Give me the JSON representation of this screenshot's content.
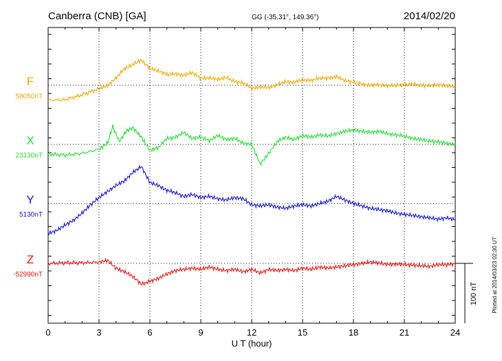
{
  "header": {
    "station": "Canberra (CNB)  [GA]",
    "coords": "GG (-35.31°, 149.36°)",
    "date": "2014/02/20"
  },
  "side_note": "Plotted at 2014/03/23 02:30 UT",
  "scale_bar_label": "100 nT",
  "chart_data": {
    "type": "line",
    "title": "Canberra (CNB)  [GA]",
    "xlabel": "U T (hour)",
    "xlim": [
      0,
      24
    ],
    "x_ticks": [
      "0",
      "3",
      "6",
      "9",
      "12",
      "15",
      "18",
      "21",
      "24"
    ],
    "grid": true,
    "units": "nT",
    "scale_nT": 100,
    "series": [
      {
        "name": "F",
        "baseline_label": "58050nT",
        "baseline_nT": 58050,
        "color": "#f0a800",
        "x": [
          0,
          1,
          2,
          3,
          3.5,
          4,
          4.5,
          5,
          5.5,
          6,
          6.5,
          7,
          7.5,
          8,
          8.5,
          9,
          9.5,
          10,
          10.5,
          11,
          11.5,
          12,
          12.5,
          13,
          13.5,
          14,
          14.5,
          15,
          15.5,
          16,
          16.5,
          17,
          17.5,
          18,
          18.5,
          19,
          19.5,
          20,
          20.5,
          21,
          21.5,
          22,
          22.5,
          23,
          23.5,
          24
        ],
        "values": [
          -25,
          -24,
          -16,
          -6,
          0,
          12,
          28,
          35,
          42,
          28,
          24,
          18,
          19,
          17,
          21,
          12,
          12,
          10,
          13,
          6,
          4,
          -5,
          -3,
          -4,
          1,
          6,
          5,
          9,
          8,
          12,
          12,
          14,
          8,
          5,
          2,
          0,
          1,
          -1,
          0,
          1,
          2,
          0,
          -1,
          1,
          -1,
          -2
        ]
      },
      {
        "name": "X",
        "baseline_label": "23130nT",
        "baseline_nT": 23130,
        "color": "#22dd33",
        "x": [
          0,
          1,
          2,
          3,
          3.5,
          3.8,
          4.2,
          4.6,
          5,
          5.5,
          6,
          6.5,
          7,
          7.5,
          8,
          8.5,
          9,
          9.5,
          10,
          10.5,
          11,
          11.5,
          12,
          12.5,
          13,
          13.5,
          14,
          14.5,
          15,
          15.5,
          16,
          16.5,
          17,
          17.5,
          18,
          18.5,
          19,
          19.5,
          20,
          20.5,
          21,
          21.5,
          22,
          22.5,
          23,
          23.5,
          24
        ],
        "values": [
          -16,
          -18,
          -15,
          -8,
          2,
          30,
          5,
          22,
          28,
          12,
          -10,
          -5,
          10,
          12,
          20,
          10,
          12,
          6,
          15,
          8,
          10,
          2,
          0,
          -33,
          -15,
          5,
          12,
          8,
          15,
          12,
          16,
          14,
          18,
          22,
          24,
          22,
          20,
          22,
          18,
          16,
          14,
          10,
          8,
          6,
          4,
          2,
          0
        ]
      },
      {
        "name": "Y",
        "baseline_label": "5130nT",
        "baseline_nT": 5130,
        "color": "#1111dd",
        "x": [
          0,
          0.5,
          1,
          1.5,
          2,
          2.5,
          3,
          3.5,
          4,
          4.5,
          5,
          5.5,
          6,
          6.5,
          7,
          7.5,
          8,
          8.5,
          9,
          9.5,
          10,
          10.5,
          11,
          11.5,
          12,
          12.5,
          13,
          13.5,
          14,
          14.5,
          15,
          15.5,
          16,
          16.5,
          17,
          17.5,
          18,
          18.5,
          19,
          19.5,
          20,
          20.5,
          21,
          21.5,
          22,
          22.5,
          23,
          23.5,
          24
        ],
        "values": [
          -50,
          -45,
          -36,
          -28,
          -16,
          -2,
          10,
          20,
          30,
          38,
          52,
          62,
          35,
          30,
          22,
          18,
          12,
          15,
          10,
          12,
          8,
          6,
          10,
          8,
          -2,
          -4,
          -2,
          -6,
          -8,
          -4,
          -2,
          -4,
          0,
          4,
          12,
          6,
          0,
          -4,
          -8,
          -10,
          -12,
          -16,
          -18,
          -20,
          -22,
          -24,
          -26,
          -24,
          -27
        ]
      },
      {
        "name": "Z",
        "baseline_label": "-52990nT",
        "baseline_nT": -52990,
        "color": "#ee1111",
        "x": [
          0,
          1,
          2,
          3,
          3.5,
          4,
          4.5,
          5,
          5.5,
          6,
          6.5,
          7,
          7.5,
          8,
          8.5,
          9,
          9.5,
          10,
          10.5,
          11,
          11.5,
          12,
          12.5,
          13,
          13.5,
          14,
          14.5,
          15,
          15.5,
          16,
          16.5,
          17,
          17.5,
          18,
          18.5,
          19,
          19.5,
          20,
          20.5,
          21,
          21.5,
          22,
          22.5,
          23,
          23.5,
          24
        ],
        "values": [
          0,
          1,
          1,
          2,
          5,
          -8,
          -14,
          -22,
          -35,
          -30,
          -25,
          -18,
          -12,
          -10,
          -8,
          -10,
          -6,
          -10,
          -12,
          -10,
          -14,
          -10,
          -16,
          -10,
          -12,
          -10,
          -12,
          -8,
          -10,
          -6,
          -8,
          -6,
          -4,
          -2,
          0,
          2,
          1,
          -2,
          -1,
          -2,
          -3,
          -4,
          -5,
          -2,
          -2,
          -1
        ]
      }
    ]
  }
}
